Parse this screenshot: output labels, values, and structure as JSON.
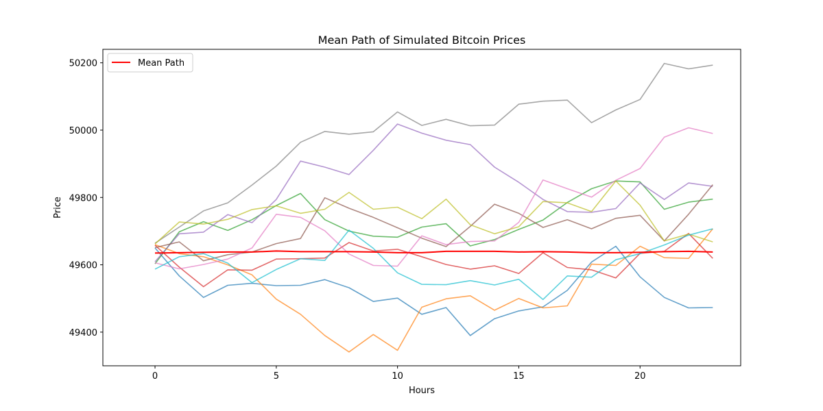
{
  "chart_data": {
    "type": "line",
    "title": "Mean Path of Simulated Bitcoin Prices",
    "xlabel": "Hours",
    "ylabel": "Price",
    "xlim": [
      -2.15,
      24.15
    ],
    "ylim": [
      49300,
      50240
    ],
    "xticks": [
      0,
      5,
      10,
      15,
      20
    ],
    "yticks": [
      49400,
      49600,
      49800,
      50000,
      50200
    ],
    "grid": false,
    "legend": {
      "location": "upper-left",
      "entries": [
        "Mean Path"
      ]
    },
    "x": [
      0,
      1,
      2,
      3,
      4,
      5,
      6,
      7,
      8,
      9,
      10,
      11,
      12,
      13,
      14,
      15,
      16,
      17,
      18,
      19,
      20,
      21,
      22,
      23
    ],
    "series": [
      {
        "color": "#1f77b4",
        "values": [
          49650,
          49567,
          49503,
          49539,
          49545,
          49538,
          49539,
          49556,
          49532,
          49491,
          49501,
          49453,
          49473,
          49390,
          49440,
          49463,
          49475,
          49524,
          49608,
          49655,
          49564,
          49503,
          49472,
          49473
        ]
      },
      {
        "color": "#ff7f0e",
        "values": [
          49660,
          49633,
          49624,
          49600,
          49570,
          49498,
          49453,
          49390,
          49341,
          49393,
          49346,
          49474,
          49499,
          49508,
          49465,
          49500,
          49472,
          49478,
          49602,
          49598,
          49655,
          49621,
          49619,
          49707
        ]
      },
      {
        "color": "#2ca02c",
        "values": [
          49603,
          49698,
          49728,
          49702,
          49734,
          49776,
          49812,
          49734,
          49700,
          49685,
          49682,
          49712,
          49722,
          49656,
          49675,
          49705,
          49733,
          49785,
          49826,
          49849,
          49846,
          49765,
          49786,
          49795
        ]
      },
      {
        "color": "#d62728",
        "values": [
          49658,
          49593,
          49535,
          49585,
          49584,
          49617,
          49618,
          49620,
          49666,
          49641,
          49646,
          49624,
          49601,
          49587,
          49597,
          49574,
          49636,
          49592,
          49585,
          49561,
          49634,
          49640,
          49693,
          49619
        ]
      },
      {
        "color": "#9467bd",
        "values": [
          49609,
          49692,
          49697,
          49749,
          49725,
          49794,
          49908,
          49890,
          49868,
          49940,
          50018,
          49991,
          49970,
          49957,
          49890,
          49845,
          49794,
          49758,
          49756,
          49767,
          49843,
          49794,
          49843,
          49833
        ]
      },
      {
        "color": "#8c564b",
        "values": [
          49651,
          49668,
          49612,
          49630,
          49638,
          49663,
          49678,
          49799,
          49768,
          49741,
          49710,
          49679,
          49654,
          49714,
          49780,
          49753,
          49711,
          49734,
          49707,
          49738,
          49747,
          49671,
          49750,
          49838
        ]
      },
      {
        "color": "#e377c2",
        "values": [
          49606,
          49588,
          49601,
          49617,
          49650,
          49750,
          49741,
          49701,
          49632,
          49598,
          49596,
          49686,
          49660,
          49669,
          49671,
          49726,
          49852,
          49826,
          49801,
          49851,
          49886,
          49979,
          50007,
          49990
        ]
      },
      {
        "color": "#7f7f7f",
        "values": [
          49664,
          49712,
          49760,
          49784,
          49837,
          49893,
          49964,
          49996,
          49988,
          49995,
          50054,
          50014,
          50032,
          50013,
          50015,
          50077,
          50086,
          50089,
          50022,
          50060,
          50091,
          50198,
          50182,
          50193
        ]
      },
      {
        "color": "#bcbd22",
        "values": [
          49662,
          49727,
          49721,
          49735,
          49764,
          49775,
          49753,
          49765,
          49815,
          49765,
          49771,
          49737,
          49795,
          49719,
          49692,
          49713,
          49788,
          49784,
          49758,
          49849,
          49777,
          49671,
          49691,
          49668
        ]
      },
      {
        "color": "#17becf",
        "values": [
          49587,
          49624,
          49633,
          49605,
          49547,
          49586,
          49618,
          49613,
          49703,
          49649,
          49576,
          49542,
          49541,
          49553,
          49540,
          49557,
          49497,
          49567,
          49563,
          49615,
          49633,
          49659,
          49688,
          49707
        ]
      }
    ],
    "mean_path": {
      "name": "Mean Path",
      "color": "#ff0000",
      "values": [
        49635,
        49636,
        49637,
        49638,
        49638,
        49641,
        49639,
        49639,
        49639,
        49638,
        49636,
        49636,
        49640,
        49640,
        49640,
        49638,
        49639,
        49638,
        49636,
        49636,
        49637,
        49639,
        49640,
        49638
      ]
    }
  }
}
